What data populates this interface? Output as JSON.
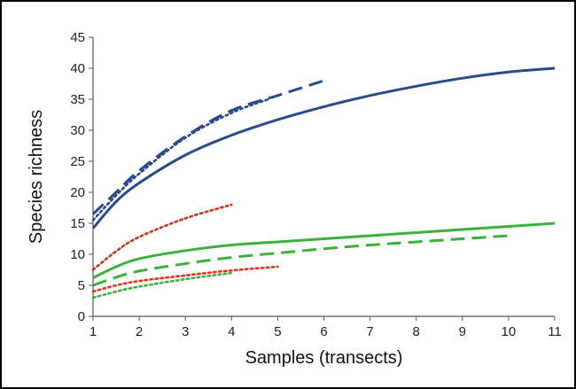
{
  "chart_data": {
    "type": "line",
    "title": "",
    "xlabel": "Samples (transects)",
    "ylabel": "Species richness",
    "xlim": [
      1,
      11
    ],
    "ylim": [
      0,
      45
    ],
    "x_ticks": [
      1,
      2,
      3,
      4,
      5,
      6,
      7,
      8,
      9,
      10,
      11
    ],
    "y_ticks": [
      0,
      5,
      10,
      15,
      20,
      25,
      30,
      35,
      40,
      45
    ],
    "grid": false,
    "legend": "none",
    "series": [
      {
        "color": "#2b4a8c",
        "style": "solid",
        "x": [
          1,
          1.5,
          2,
          3,
          4,
          5,
          6,
          7,
          8,
          9,
          10,
          11
        ],
        "y": [
          14.2,
          18.5,
          21.5,
          26,
          29.2,
          31.7,
          33.8,
          35.6,
          37.1,
          38.4,
          39.4,
          40
        ]
      },
      {
        "color": "#2b4a8c",
        "style": "dashed",
        "x": [
          1,
          1.5,
          2,
          3,
          4,
          5,
          6
        ],
        "y": [
          16.5,
          20,
          23.5,
          29,
          33.2,
          35.6,
          38
        ]
      },
      {
        "color": "#2b4a8c",
        "style": "dotted",
        "x": [
          1,
          1.5,
          2,
          3,
          4,
          4.8
        ],
        "y": [
          15.5,
          19.5,
          23,
          28.8,
          32.8,
          35
        ]
      },
      {
        "color": "#3bb03b",
        "style": "solid",
        "x": [
          1,
          1.5,
          2,
          3,
          4,
          5,
          6,
          7,
          8,
          9,
          10,
          11
        ],
        "y": [
          6.2,
          8,
          9.3,
          10.6,
          11.5,
          12,
          12.5,
          13,
          13.5,
          14,
          14.5,
          15
        ]
      },
      {
        "color": "#3bb03b",
        "style": "dashed",
        "x": [
          1,
          1.5,
          2,
          3,
          4,
          5,
          6,
          7,
          8,
          9,
          10
        ],
        "y": [
          5,
          6.3,
          7.3,
          8.5,
          9.5,
          10.2,
          10.9,
          11.5,
          12,
          12.5,
          13
        ]
      },
      {
        "color": "#3bb03b",
        "style": "dotted",
        "x": [
          1,
          1.5,
          2,
          3,
          4
        ],
        "y": [
          3,
          4,
          4.8,
          6,
          7
        ]
      },
      {
        "color": "#c0391b",
        "style": "dotted",
        "x": [
          1,
          1.5,
          2,
          3,
          4
        ],
        "y": [
          7.5,
          10.5,
          12.8,
          15.8,
          18
        ]
      },
      {
        "color": "#e8321e",
        "style": "dotted",
        "x": [
          1,
          1.5,
          2,
          3,
          4,
          5
        ],
        "y": [
          4,
          5,
          5.7,
          6.6,
          7.4,
          8
        ]
      }
    ]
  }
}
